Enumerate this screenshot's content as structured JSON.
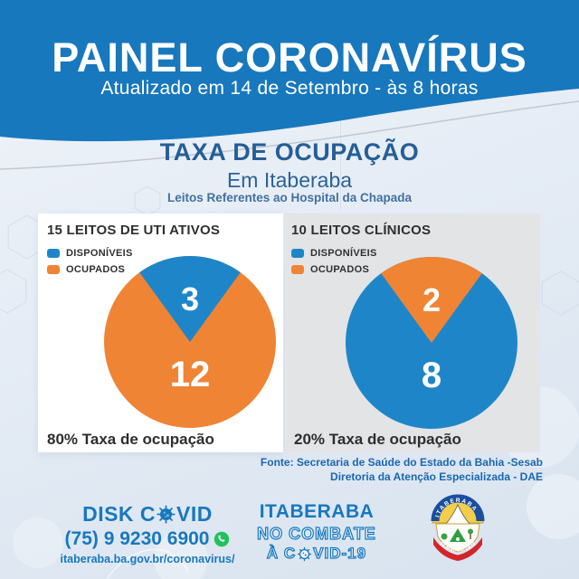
{
  "colors": {
    "header_blue": "#1878be",
    "title_blue": "#265e97",
    "available_blue": "#1e86c8",
    "occupied_orange": "#f08435",
    "text_dark": "#2e2e2e",
    "source_blue": "#1b67b0",
    "whatsapp_green": "#23c15e",
    "right_card_gray": "#e3e4e6"
  },
  "header": {
    "title": "PAINEL CORONAVÍRUS",
    "subtitle": "Atualizado em 14 de Setembro - às 8 horas"
  },
  "section": {
    "title": "TAXA DE OCUPAÇÃO",
    "subtitle": "Em Itaberaba",
    "note": "Leitos Referentes ao Hospital da Chapada"
  },
  "chart_data": [
    {
      "type": "pie",
      "title": "15 LEITOS DE UTI ATIVOS",
      "labels": [
        "DISPONÍVEIS",
        "OCUPADOS"
      ],
      "values": [
        3,
        12
      ],
      "colors": [
        "#1e86c8",
        "#f08435"
      ],
      "top_slice_index": 0,
      "caption": "80% Taxa de ocupação"
    },
    {
      "type": "pie",
      "title": "10 LEITOS CLÍNICOS",
      "labels": [
        "DISPONÍVEIS",
        "OCUPADOS"
      ],
      "values": [
        8,
        2
      ],
      "colors": [
        "#1e86c8",
        "#f08435"
      ],
      "top_slice_index": 1,
      "caption": "20% Taxa de ocupação"
    }
  ],
  "source": {
    "line1": "Fonte: Secretaria de Saúde do Estado da Bahia -Sesab",
    "line2": "Diretoria da Atenção Especializada - DAE"
  },
  "footer": {
    "disk": {
      "label_pre": "DISK C",
      "label_post": "VID",
      "phone": "(75) 9 9230 6900",
      "url": "itaberaba.ba.gov.br/coronavirus/"
    },
    "campaign": {
      "line1": "ITABERABA",
      "line2": "NO COMBATE",
      "line3_pre": "À C",
      "line3_post": "VID-19"
    },
    "crest": {
      "name": "ITABERABA",
      "motto": "24 MARÇO 1877"
    }
  }
}
